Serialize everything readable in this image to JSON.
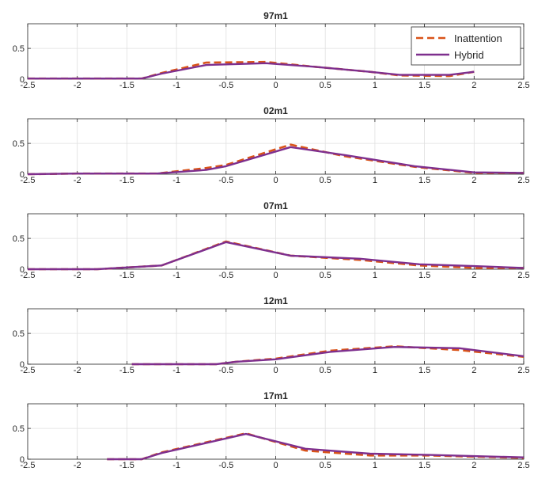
{
  "figure": {
    "legend": {
      "placement": "top-right",
      "panel": 0
    },
    "colors": {
      "Inattention": "#D95319",
      "Hybrid": "#7E2F8E",
      "axis": "#262626",
      "grid": "#DFDFDF"
    }
  },
  "chart_data": [
    {
      "type": "line",
      "title": "97m1",
      "xlim": [
        -2.5,
        2.5
      ],
      "ylim": [
        0,
        0.9
      ],
      "xticks": [
        -2.5,
        -2,
        -1.5,
        -1,
        -0.5,
        0,
        0.5,
        1,
        1.5,
        2,
        2.5
      ],
      "yticks": [
        0,
        0.5
      ],
      "grid": true,
      "series": [
        {
          "name": "Inattention",
          "style": "dashed",
          "x": [
            -2.5,
            -1.35,
            -1.15,
            -0.7,
            -0.1,
            0.4,
            0.95,
            1.25,
            1.75,
            2.0
          ],
          "y": [
            0.01,
            0.01,
            0.1,
            0.27,
            0.28,
            0.2,
            0.12,
            0.06,
            0.05,
            0.12
          ]
        },
        {
          "name": "Hybrid",
          "style": "solid",
          "x": [
            -2.5,
            -1.35,
            -1.15,
            -0.7,
            -0.1,
            0.4,
            0.95,
            1.25,
            1.75,
            2.0
          ],
          "y": [
            0.01,
            0.01,
            0.09,
            0.23,
            0.26,
            0.2,
            0.12,
            0.07,
            0.07,
            0.12
          ]
        }
      ]
    },
    {
      "type": "line",
      "title": "02m1",
      "xlim": [
        -2.5,
        2.5
      ],
      "ylim": [
        0,
        0.9
      ],
      "xticks": [
        -2.5,
        -2,
        -1.5,
        -1,
        -0.5,
        0,
        0.5,
        1,
        1.5,
        2,
        2.5
      ],
      "yticks": [
        0,
        0.5
      ],
      "grid": true,
      "series": [
        {
          "name": "Inattention",
          "style": "dashed",
          "x": [
            -2.5,
            -2.0,
            -1.2,
            -0.7,
            -0.5,
            0.15,
            0.7,
            1.4,
            2.0,
            2.5
          ],
          "y": [
            0.0,
            0.01,
            0.01,
            0.1,
            0.15,
            0.48,
            0.29,
            0.12,
            0.02,
            0.02
          ]
        },
        {
          "name": "Hybrid",
          "style": "solid",
          "x": [
            -2.5,
            -2.0,
            -1.2,
            -0.7,
            -0.5,
            0.15,
            0.7,
            1.4,
            2.0,
            2.5
          ],
          "y": [
            0.0,
            0.01,
            0.01,
            0.07,
            0.13,
            0.44,
            0.31,
            0.13,
            0.03,
            0.02
          ]
        }
      ]
    },
    {
      "type": "line",
      "title": "07m1",
      "xlim": [
        -2.5,
        2.5
      ],
      "ylim": [
        0,
        0.9
      ],
      "xticks": [
        -2.5,
        -2,
        -1.5,
        -1,
        -0.5,
        0,
        0.5,
        1,
        1.5,
        2,
        2.5
      ],
      "yticks": [
        0,
        0.5
      ],
      "grid": true,
      "series": [
        {
          "name": "Inattention",
          "style": "dashed",
          "x": [
            -2.5,
            -1.8,
            -1.15,
            -0.5,
            0.15,
            0.85,
            1.45,
            2.0,
            2.5
          ],
          "y": [
            0.0,
            0.0,
            0.06,
            0.45,
            0.22,
            0.15,
            0.06,
            0.02,
            0.02
          ]
        },
        {
          "name": "Hybrid",
          "style": "solid",
          "x": [
            -2.5,
            -1.8,
            -1.15,
            -0.5,
            0.15,
            0.85,
            1.45,
            2.0,
            2.5
          ],
          "y": [
            0.0,
            0.0,
            0.06,
            0.44,
            0.22,
            0.17,
            0.08,
            0.05,
            0.02
          ]
        }
      ]
    },
    {
      "type": "line",
      "title": "12m1",
      "xlim": [
        -2.5,
        2.5
      ],
      "ylim": [
        0,
        0.9
      ],
      "xticks": [
        -2.5,
        -2,
        -1.5,
        -1,
        -0.5,
        0,
        0.5,
        1,
        1.5,
        2,
        2.5
      ],
      "yticks": [
        0,
        0.5
      ],
      "grid": true,
      "series": [
        {
          "name": "Inattention",
          "style": "dashed",
          "x": [
            -1.45,
            -0.6,
            -0.4,
            0.0,
            0.55,
            1.2,
            1.85,
            2.5
          ],
          "y": [
            0.0,
            0.0,
            0.04,
            0.09,
            0.22,
            0.29,
            0.23,
            0.12
          ]
        },
        {
          "name": "Hybrid",
          "style": "solid",
          "x": [
            -1.45,
            -0.6,
            -0.4,
            0.0,
            0.55,
            1.2,
            1.85,
            2.5
          ],
          "y": [
            0.0,
            0.0,
            0.04,
            0.08,
            0.2,
            0.28,
            0.26,
            0.13
          ]
        }
      ]
    },
    {
      "type": "line",
      "title": "17m1",
      "xlim": [
        -2.5,
        2.5
      ],
      "ylim": [
        0,
        0.9
      ],
      "xticks": [
        -2.5,
        -2,
        -1.5,
        -1,
        -0.5,
        0,
        0.5,
        1,
        1.5,
        2,
        2.5
      ],
      "yticks": [
        0,
        0.5
      ],
      "grid": true,
      "series": [
        {
          "name": "Inattention",
          "style": "dashed",
          "x": [
            -1.7,
            -1.35,
            -1.15,
            -0.3,
            0.3,
            0.95,
            1.55,
            2.5
          ],
          "y": [
            0.0,
            0.0,
            0.11,
            0.42,
            0.14,
            0.06,
            0.06,
            0.02
          ]
        },
        {
          "name": "Hybrid",
          "style": "solid",
          "x": [
            -1.7,
            -1.35,
            -1.15,
            -0.3,
            0.3,
            0.95,
            1.55,
            2.5
          ],
          "y": [
            0.0,
            0.0,
            0.1,
            0.41,
            0.17,
            0.09,
            0.07,
            0.03
          ]
        }
      ]
    }
  ]
}
